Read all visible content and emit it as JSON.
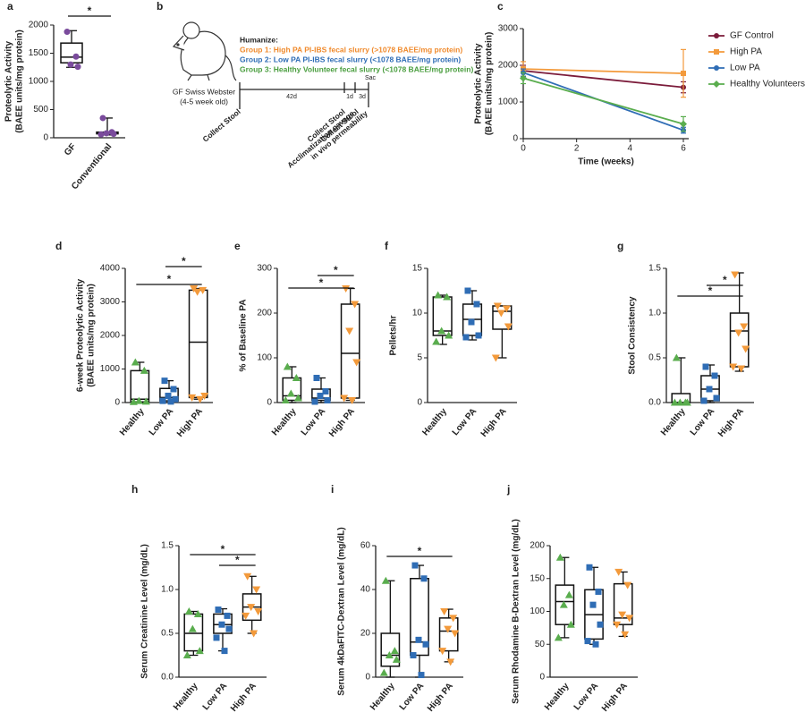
{
  "diagram": {
    "label": "b",
    "mouse_label": [
      "GF Swiss Webster",
      "(4-5 week old)"
    ],
    "humanize": "Humanize:",
    "groups": [
      {
        "text": "Group 1: High PA PI-IBS fecal slurry (>1078 BAEE/mg protein)",
        "color": "#f08a2c"
      },
      {
        "text": "Group 2: Low PA PI-IBS fecal slurry (<1078 BAEE/mg protein)",
        "color": "#2f6db5"
      },
      {
        "text": "Group 3: Healthy Volunteer fecal slurry (<1078 BAEE/mg protein)",
        "color": "#4a9e3f"
      }
    ],
    "durations": [
      "42d",
      "1d",
      "3d"
    ],
    "sac": "Sac",
    "events": [
      [
        "Collect Stool"
      ],
      [
        "Collect Stool",
        "Acclimatization gavage"
      ],
      [
        "Collect Stool",
        "in vivo permeability"
      ]
    ]
  },
  "chart_data": [
    {
      "type": "box",
      "label": "a",
      "ylabel": [
        "Proteolytic Activity",
        "(BAEE units/mg protein)"
      ],
      "ylim": [
        0,
        2000
      ],
      "yticks": [
        0,
        500,
        1000,
        1500,
        2000
      ],
      "categories": [
        "GF",
        "Conventional"
      ],
      "groups": [
        {
          "color": "#7a4b9c",
          "marker": "circle",
          "min": 1250,
          "q1": 1330,
          "median": 1430,
          "q3": 1680,
          "max": 1900,
          "points": [
            1880,
            1440,
            1300,
            1260
          ]
        },
        {
          "color": "#7a4b9c",
          "marker": "circle",
          "min": 50,
          "q1": 70,
          "median": 80,
          "q3": 100,
          "max": 350,
          "points": [
            350,
            100,
            80,
            70,
            60
          ]
        }
      ],
      "annotations": [
        {
          "text": "*",
          "between": [
            "GF",
            "Conventional"
          ]
        }
      ]
    },
    {
      "type": "line",
      "label": "c",
      "ylabel": [
        "Proteolytic Activity",
        "(BAEE units/mg protein)"
      ],
      "xlabel": "Time (weeks)",
      "x": [
        0,
        6
      ],
      "xlim": [
        0,
        6
      ],
      "xticks": [
        0,
        2,
        4,
        6
      ],
      "ylim": [
        0,
        3000
      ],
      "yticks": [
        0,
        1000,
        2000,
        3000
      ],
      "series": [
        {
          "name": "GF Control",
          "color": "#7b1b3a",
          "marker": "circle",
          "values": [
            1850,
            1400
          ],
          "errors": [
            150,
            150
          ]
        },
        {
          "name": "High PA",
          "color": "#f39a3b",
          "marker": "square",
          "values": [
            1900,
            1780
          ],
          "errors": [
            200,
            650
          ]
        },
        {
          "name": "Low PA",
          "color": "#2f6db5",
          "marker": "circle",
          "values": [
            1800,
            230
          ],
          "errors": [
            100,
            80
          ]
        },
        {
          "name": "Healthy Volunteers",
          "color": "#5aad4e",
          "marker": "diamond",
          "values": [
            1650,
            400
          ],
          "errors": [
            150,
            200
          ]
        }
      ]
    },
    {
      "type": "box",
      "label": "d",
      "ylabel": [
        "6-week Proteolytic Activity",
        "(BAEE units/mg protein)"
      ],
      "ylim": [
        0,
        4000
      ],
      "yticks": [
        0,
        1000,
        2000,
        3000,
        4000
      ],
      "categories": [
        "Healthy",
        "Low PA",
        "High PA"
      ],
      "groups": [
        {
          "color": "#5aad4e",
          "marker": "triangle-up",
          "min": 0,
          "q1": 20,
          "median": 100,
          "q3": 950,
          "max": 1200,
          "points": [
            1200,
            950,
            50,
            30,
            20
          ]
        },
        {
          "color": "#2f6db5",
          "marker": "square",
          "min": 0,
          "q1": 50,
          "median": 150,
          "q3": 420,
          "max": 650,
          "points": [
            650,
            400,
            200,
            100,
            50,
            30
          ]
        },
        {
          "color": "#f39a3b",
          "marker": "triangle-down",
          "min": 100,
          "q1": 150,
          "median": 1800,
          "q3": 3350,
          "max": 3400,
          "points": [
            3400,
            3350,
            3300,
            200,
            150,
            100
          ]
        }
      ],
      "annotations": [
        {
          "text": "*",
          "between": [
            "Healthy",
            "High PA"
          ]
        },
        {
          "text": "*",
          "between": [
            "Low PA",
            "High PA"
          ]
        }
      ]
    },
    {
      "type": "box",
      "label": "e",
      "ylabel": [
        "% of Baseline PA"
      ],
      "ylim": [
        0,
        300
      ],
      "yticks": [
        0,
        100,
        200,
        300
      ],
      "categories": [
        "Healthy",
        "Low PA",
        "High PA"
      ],
      "groups": [
        {
          "color": "#5aad4e",
          "marker": "triangle-up",
          "min": 0,
          "q1": 5,
          "median": 15,
          "q3": 55,
          "max": 80,
          "points": [
            80,
            55,
            20,
            10,
            5
          ]
        },
        {
          "color": "#2f6db5",
          "marker": "square",
          "min": 0,
          "q1": 5,
          "median": 10,
          "q3": 30,
          "max": 55,
          "points": [
            55,
            25,
            15,
            5,
            2
          ]
        },
        {
          "color": "#f39a3b",
          "marker": "triangle-down",
          "min": 5,
          "q1": 10,
          "median": 110,
          "q3": 220,
          "max": 255,
          "points": [
            255,
            220,
            160,
            90,
            10,
            5
          ]
        }
      ],
      "annotations": [
        {
          "text": "*",
          "between": [
            "Healthy",
            "High PA"
          ]
        },
        {
          "text": "*",
          "between": [
            "Low PA",
            "High PA"
          ]
        }
      ]
    },
    {
      "type": "box",
      "label": "f",
      "ylabel": [
        "Pellets/hr"
      ],
      "ylim": [
        0,
        15
      ],
      "yticks": [
        0,
        5,
        10,
        15
      ],
      "categories": [
        "Healthy",
        "Low PA",
        "High PA"
      ],
      "groups": [
        {
          "color": "#5aad4e",
          "marker": "triangle-up",
          "min": 6.5,
          "q1": 7.5,
          "median": 8,
          "q3": 11.8,
          "max": 12,
          "points": [
            12,
            11.8,
            8,
            7.5,
            6.8
          ]
        },
        {
          "color": "#2f6db5",
          "marker": "square",
          "min": 7,
          "q1": 7.5,
          "median": 9.3,
          "q3": 11,
          "max": 12.5,
          "points": [
            12.5,
            11,
            9,
            7.5,
            7.3
          ]
        },
        {
          "color": "#f39a3b",
          "marker": "triangle-down",
          "min": 5,
          "q1": 8.2,
          "median": 10.2,
          "q3": 10.8,
          "max": 10.8,
          "points": [
            10.8,
            10.5,
            10,
            8.5,
            5
          ]
        }
      ],
      "annotations": []
    },
    {
      "type": "box",
      "label": "g",
      "ylabel": [
        "Stool Consistency"
      ],
      "ylim": [
        0,
        1.5
      ],
      "yticks": [
        {
          "value": 0,
          "label": "0.0"
        },
        {
          "value": 0.5,
          "label": "0.5"
        },
        {
          "value": 1,
          "label": "1.0"
        },
        {
          "value": 1.5,
          "label": "1.5"
        }
      ],
      "categories": [
        "Healthy",
        "Low PA",
        "High PA"
      ],
      "groups": [
        {
          "color": "#5aad4e",
          "marker": "triangle-up",
          "min": 0,
          "q1": 0,
          "median": 0,
          "q3": 0.1,
          "max": 0.5,
          "points": [
            0.5,
            0,
            0,
            0,
            0
          ]
        },
        {
          "color": "#2f6db5",
          "marker": "square",
          "min": 0,
          "q1": 0.02,
          "median": 0.15,
          "q3": 0.3,
          "max": 0.42,
          "points": [
            0.4,
            0.3,
            0.15,
            0.05,
            0.02
          ]
        },
        {
          "color": "#f39a3b",
          "marker": "triangle-down",
          "min": 0.35,
          "q1": 0.4,
          "median": 0.8,
          "q3": 1,
          "max": 1.45,
          "points": [
            1.43,
            0.85,
            0.78,
            0.6,
            0.4,
            0.38
          ]
        }
      ],
      "annotations": [
        {
          "text": "*",
          "between": [
            "Healthy",
            "High PA"
          ]
        },
        {
          "text": "*",
          "between": [
            "Low PA",
            "High PA"
          ]
        }
      ]
    },
    {
      "type": "box",
      "label": "h",
      "ylabel": [
        "Serum Creatinine Level (mg/dL)"
      ],
      "ylim": [
        0,
        1.5
      ],
      "yticks": [
        {
          "value": 0,
          "label": "0.0"
        },
        {
          "value": 0.5,
          "label": "0.5"
        },
        {
          "value": 1,
          "label": "1.0"
        },
        {
          "value": 1.5,
          "label": "1.5"
        }
      ],
      "categories": [
        "Healthy",
        "Low PA",
        "High PA"
      ],
      "groups": [
        {
          "color": "#5aad4e",
          "marker": "triangle-up",
          "min": 0.25,
          "q1": 0.3,
          "median": 0.5,
          "q3": 0.72,
          "max": 0.75,
          "points": [
            0.75,
            0.72,
            0.55,
            0.3,
            0.25
          ]
        },
        {
          "color": "#2f6db5",
          "marker": "square",
          "min": 0.3,
          "q1": 0.5,
          "median": 0.6,
          "q3": 0.72,
          "max": 0.78,
          "points": [
            0.77,
            0.7,
            0.6,
            0.55,
            0.45,
            0.3
          ]
        },
        {
          "color": "#f39a3b",
          "marker": "triangle-down",
          "min": 0.5,
          "q1": 0.65,
          "median": 0.8,
          "q3": 0.95,
          "max": 1.15,
          "points": [
            1.15,
            1,
            0.8,
            0.75,
            0.7,
            0.5
          ]
        }
      ],
      "annotations": [
        {
          "text": "*",
          "between": [
            "Low PA",
            "High PA"
          ]
        },
        {
          "text": "*",
          "between": [
            "Healthy",
            "High PA"
          ]
        }
      ]
    },
    {
      "type": "box",
      "label": "i",
      "ylabel": [
        "Serum 4kDaFITC-Dextran Level (mg/dL)"
      ],
      "ylim": [
        0,
        60
      ],
      "yticks": [
        0,
        20,
        40,
        60
      ],
      "categories": [
        "Healthy",
        "Low PA",
        "High PA"
      ],
      "groups": [
        {
          "color": "#5aad4e",
          "marker": "triangle-up",
          "min": 0,
          "q1": 5,
          "median": 10,
          "q3": 20,
          "max": 44,
          "points": [
            44,
            12,
            10,
            8,
            2
          ]
        },
        {
          "color": "#2f6db5",
          "marker": "square",
          "min": 0,
          "q1": 10,
          "median": 16,
          "q3": 45,
          "max": 51,
          "points": [
            51,
            45,
            17,
            15,
            10,
            1
          ]
        },
        {
          "color": "#f39a3b",
          "marker": "triangle-down",
          "min": 7,
          "q1": 12,
          "median": 21,
          "q3": 27,
          "max": 31,
          "points": [
            30,
            27,
            22,
            20,
            12,
            7
          ]
        }
      ],
      "annotations": [
        {
          "text": "*",
          "between": [
            "Healthy",
            "High PA"
          ]
        }
      ]
    },
    {
      "type": "box",
      "label": "j",
      "ylabel": [
        "Serum Rhodamine B-Dextran Level (mg/dL)"
      ],
      "ylim": [
        0,
        200
      ],
      "yticks": [
        0,
        50,
        100,
        150,
        200
      ],
      "categories": [
        "Healthy",
        "Low PA",
        "High PA"
      ],
      "groups": [
        {
          "color": "#5aad4e",
          "marker": "triangle-up",
          "min": 60,
          "q1": 80,
          "median": 115,
          "q3": 140,
          "max": 182,
          "points": [
            182,
            125,
            110,
            80,
            60
          ]
        },
        {
          "color": "#2f6db5",
          "marker": "square",
          "min": 50,
          "q1": 58,
          "median": 95,
          "q3": 133,
          "max": 167,
          "points": [
            167,
            130,
            110,
            80,
            55,
            50
          ]
        },
        {
          "color": "#f39a3b",
          "marker": "triangle-down",
          "min": 62,
          "q1": 80,
          "median": 90,
          "q3": 142,
          "max": 160,
          "points": [
            160,
            140,
            95,
            90,
            80,
            65
          ]
        }
      ],
      "annotations": []
    }
  ]
}
